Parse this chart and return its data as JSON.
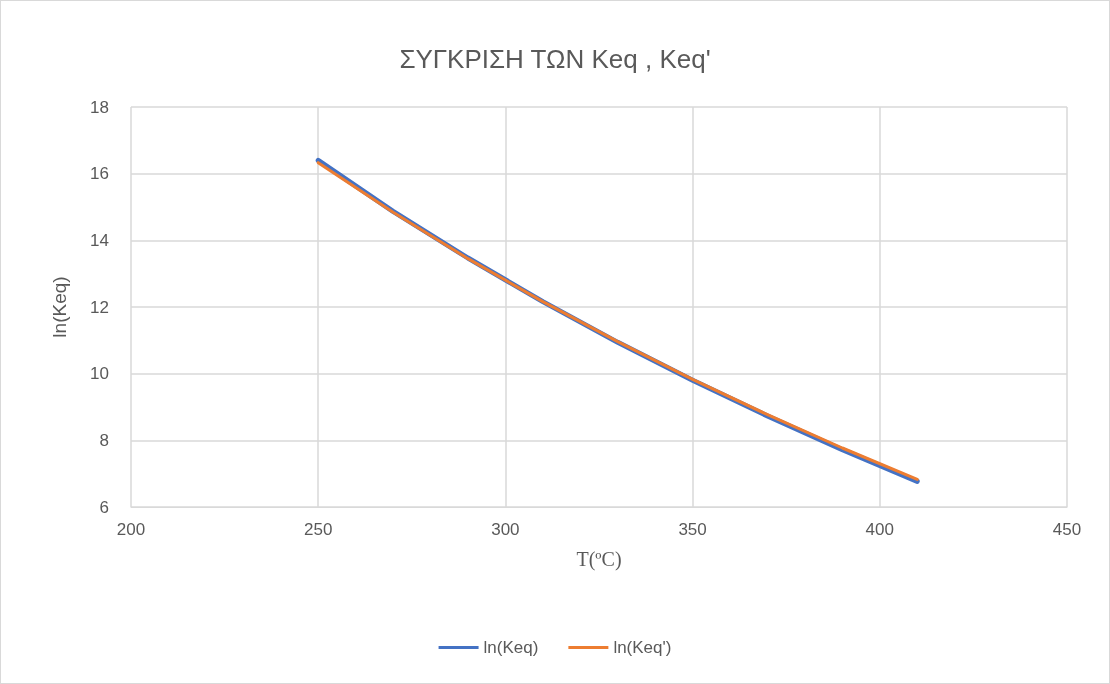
{
  "chart_data": {
    "type": "line",
    "title": "ΣΥΓΚΡΙΣΗ ΤΩΝ Keq , Keq'",
    "xlabel": "T(ºC)",
    "ylabel": "ln(Keq)",
    "x": [
      250,
      270,
      290,
      310,
      330,
      350,
      370,
      390,
      410
    ],
    "series": [
      {
        "name": "ln(Keq)",
        "color": "#4472c4",
        "values": [
          16.4,
          14.87,
          13.47,
          12.16,
          10.94,
          9.8,
          8.73,
          7.72,
          6.77
        ]
      },
      {
        "name": "ln(Keq')",
        "color": "#ed7d31",
        "values": [
          16.33,
          14.84,
          13.45,
          12.16,
          10.96,
          9.83,
          8.77,
          7.77,
          6.83
        ]
      }
    ],
    "xlim": [
      200,
      450
    ],
    "xticks": [
      200,
      250,
      300,
      350,
      400,
      450
    ],
    "ylim": [
      6,
      18
    ],
    "yticks": [
      6,
      8,
      10,
      12,
      14,
      16,
      18
    ],
    "grid": true,
    "legend": "bottom",
    "marker": "none",
    "line_style": "solid"
  }
}
